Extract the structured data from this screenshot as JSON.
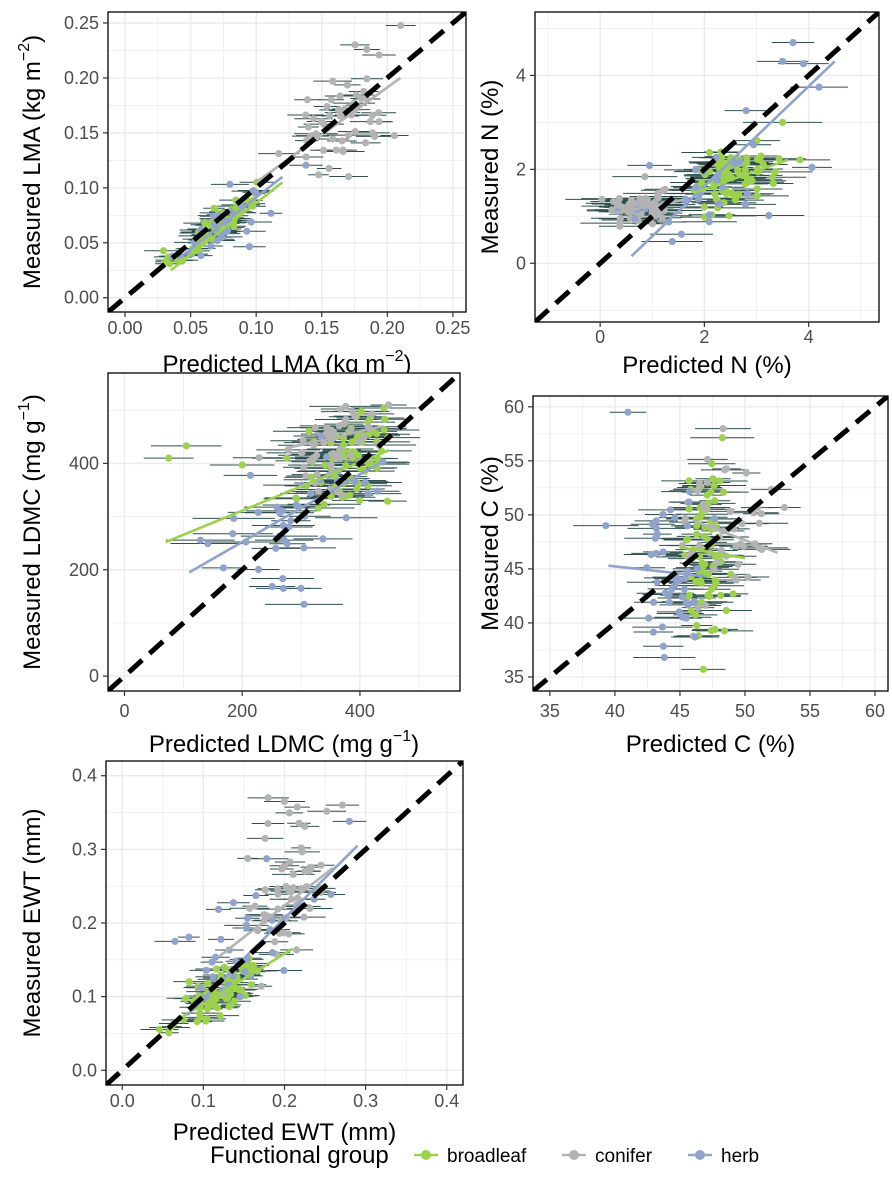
{
  "colors": {
    "broadleaf": "#9bd14c",
    "conifer": "#b3b3b3",
    "herb": "#8fa3cc",
    "errorbar": "#2f4f4f",
    "grid": "#ebebeb",
    "one_to_one": "#000000"
  },
  "legend": {
    "title": "Functional group",
    "entries": [
      {
        "key": "broadleaf",
        "label": "broadleaf"
      },
      {
        "key": "conifer",
        "label": "conifer"
      },
      {
        "key": "herb",
        "label": "herb"
      }
    ]
  },
  "chart_data": [
    {
      "id": "lma",
      "type": "scatter",
      "xlabel": {
        "main": "Predicted LMA (kg m",
        "sup": "−2",
        "tail": ")"
      },
      "ylabel": {
        "main": "Measured LMA (kg m",
        "sup": "−2",
        "tail": ")"
      },
      "xlim": [
        -0.013,
        0.26
      ],
      "ylim": [
        -0.013,
        0.26
      ],
      "ticks": [
        0.0,
        0.05,
        0.1,
        0.15,
        0.2,
        0.25
      ],
      "tick_labels": [
        "0.00",
        "0.05",
        "0.10",
        "0.15",
        "0.20",
        "0.25"
      ],
      "xerr": 0.012,
      "clusters": [
        {
          "group": "broadleaf",
          "n": 70,
          "cx": 0.068,
          "cy": 0.064,
          "sx": 0.016,
          "sy": 0.016,
          "r": 0.9
        },
        {
          "group": "conifer",
          "n": 55,
          "cx": 0.165,
          "cy": 0.165,
          "sx": 0.022,
          "sy": 0.034,
          "r": 0.55
        },
        {
          "group": "herb",
          "n": 28,
          "cx": 0.08,
          "cy": 0.07,
          "sx": 0.018,
          "sy": 0.018,
          "r": 0.7
        }
      ],
      "fit_lines": [
        {
          "group": "broadleaf",
          "x": [
            0.035,
            0.12
          ],
          "y": [
            0.025,
            0.105
          ]
        },
        {
          "group": "herb",
          "x": [
            0.04,
            0.12
          ],
          "y": [
            0.035,
            0.11
          ]
        },
        {
          "group": "conifer",
          "x": [
            0.1,
            0.21
          ],
          "y": [
            0.105,
            0.2
          ]
        }
      ]
    },
    {
      "id": "n",
      "type": "scatter",
      "xlabel": {
        "main": "Predicted N (%)"
      },
      "ylabel": {
        "main": "Measured N (%)"
      },
      "xlim": [
        -1.25,
        5.35
      ],
      "ylim": [
        -1.25,
        5.35
      ],
      "ticks": [
        0,
        2,
        4
      ],
      "tick_labels": [
        "0",
        "2",
        "4"
      ],
      "xerr": 0.55,
      "clusters": [
        {
          "group": "conifer",
          "n": 60,
          "cx": 0.75,
          "cy": 1.2,
          "sx": 0.3,
          "sy": 0.22,
          "r": 0.2
        },
        {
          "group": "broadleaf",
          "n": 80,
          "cx": 2.6,
          "cy": 1.85,
          "sx": 0.45,
          "sy": 0.35,
          "r": 0.5
        },
        {
          "group": "herb",
          "n": 30,
          "cx": 2.0,
          "cy": 1.5,
          "sx": 0.8,
          "sy": 0.5,
          "r": 0.6
        }
      ],
      "extra_points": [
        {
          "group": "herb",
          "x": 3.7,
          "y": 4.7
        },
        {
          "group": "herb",
          "x": 3.5,
          "y": 4.3
        },
        {
          "group": "herb",
          "x": 3.9,
          "y": 4.25
        },
        {
          "group": "herb",
          "x": 4.2,
          "y": 3.75
        },
        {
          "group": "herb",
          "x": 2.8,
          "y": 3.25
        },
        {
          "group": "broadleaf",
          "x": 3.5,
          "y": 3.0
        }
      ],
      "fit_lines": [
        {
          "group": "herb",
          "x": [
            0.6,
            4.5
          ],
          "y": [
            0.15,
            4.3
          ]
        },
        {
          "group": "conifer",
          "x": [
            0.2,
            1.6
          ],
          "y": [
            1.05,
            1.35
          ]
        },
        {
          "group": "broadleaf",
          "x": [
            1.8,
            3.6
          ],
          "y": [
            1.5,
            2.2
          ]
        }
      ]
    },
    {
      "id": "ldmc",
      "type": "scatter",
      "xlabel": {
        "main": "Predicted LDMC (mg g",
        "sup": "−1",
        "tail": ")"
      },
      "ylabel": {
        "main": "Measured LDMC (mg g",
        "sup": "−1",
        "tail": ")"
      },
      "xlim": [
        -28,
        570
      ],
      "ylim": [
        -28,
        570
      ],
      "ticks": [
        0,
        200,
        400
      ],
      "tick_labels": [
        "0",
        "200",
        "400"
      ],
      "xerr": 50,
      "clusters": [
        {
          "group": "broadleaf",
          "n": 75,
          "cx": 370,
          "cy": 400,
          "sx": 45,
          "sy": 50,
          "r": 0.4
        },
        {
          "group": "conifer",
          "n": 50,
          "cx": 360,
          "cy": 440,
          "sx": 35,
          "sy": 40,
          "r": 0.3
        },
        {
          "group": "herb",
          "n": 40,
          "cx": 300,
          "cy": 310,
          "sx": 80,
          "sy": 70,
          "r": 0.6
        }
      ],
      "extra_points": [
        {
          "group": "broadleaf",
          "x": 75,
          "y": 410
        },
        {
          "group": "broadleaf",
          "x": 105,
          "y": 433
        },
        {
          "group": "broadleaf",
          "x": 200,
          "y": 397
        },
        {
          "group": "herb",
          "x": 305,
          "y": 135
        },
        {
          "group": "herb",
          "x": 300,
          "y": 165
        },
        {
          "group": "herb",
          "x": 270,
          "y": 165
        }
      ],
      "fit_lines": [
        {
          "group": "broadleaf",
          "x": [
            70,
            450
          ],
          "y": [
            252,
            425
          ]
        },
        {
          "group": "herb",
          "x": [
            110,
            440
          ],
          "y": [
            195,
            405
          ]
        },
        {
          "group": "conifer",
          "x": [
            280,
            440
          ],
          "y": [
            430,
            470
          ]
        }
      ]
    },
    {
      "id": "c",
      "type": "scatter",
      "xlabel": {
        "main": "Predicted C (%)"
      },
      "ylabel": {
        "main": "Measured C (%)"
      },
      "xlim": [
        33.7,
        61.0
      ],
      "ylim": [
        33.7,
        61.0
      ],
      "ticks": [
        35,
        40,
        45,
        50,
        55,
        60
      ],
      "tick_labels": [
        "35",
        "40",
        "45",
        "50",
        "55",
        "60"
      ],
      "xerr": 1.8,
      "clusters": [
        {
          "group": "broadleaf",
          "n": 80,
          "cx": 47.0,
          "cy": 46.5,
          "sx": 0.9,
          "sy": 4.0,
          "r": 0.1
        },
        {
          "group": "conifer",
          "n": 50,
          "cx": 48.5,
          "cy": 49.0,
          "sx": 1.6,
          "sy": 4.0,
          "r": 0.05
        },
        {
          "group": "herb",
          "n": 45,
          "cx": 44.5,
          "cy": 44.5,
          "sx": 1.4,
          "sy": 3.5,
          "r": 0.2
        }
      ],
      "extra_points": [
        {
          "group": "herb",
          "x": 41.0,
          "y": 59.5
        },
        {
          "group": "herb",
          "x": 39.3,
          "y": 49.0
        },
        {
          "group": "herb",
          "x": 43.8,
          "y": 36.8
        },
        {
          "group": "broadleaf",
          "x": 46.8,
          "y": 35.7
        }
      ],
      "fit_lines": [
        {
          "group": "broadleaf",
          "x": [
            45.0,
            50.0
          ],
          "y": [
            47.0,
            46.0
          ]
        },
        {
          "group": "herb",
          "x": [
            39.5,
            47.0
          ],
          "y": [
            45.3,
            44.3
          ]
        },
        {
          "group": "conifer",
          "x": [
            46.0,
            52.5
          ],
          "y": [
            49.5,
            46.5
          ]
        }
      ]
    },
    {
      "id": "ewt",
      "type": "scatter",
      "xlabel": {
        "main": "Predicted EWT (mm)"
      },
      "ylabel": {
        "main": "Measured EWT (mm)"
      },
      "xlim": [
        -0.02,
        0.42
      ],
      "ylim": [
        -0.02,
        0.42
      ],
      "ticks": [
        0.0,
        0.1,
        0.2,
        0.3,
        0.4
      ],
      "tick_labels": [
        "0.0",
        "0.1",
        "0.2",
        "0.3",
        "0.4"
      ],
      "xerr": 0.02,
      "clusters": [
        {
          "group": "broadleaf",
          "n": 90,
          "cx": 0.115,
          "cy": 0.1,
          "sx": 0.025,
          "sy": 0.022,
          "r": 0.7
        },
        {
          "group": "conifer",
          "n": 55,
          "cx": 0.2,
          "cy": 0.24,
          "sx": 0.03,
          "sy": 0.055,
          "r": 0.4
        },
        {
          "group": "herb",
          "n": 30,
          "cx": 0.15,
          "cy": 0.16,
          "sx": 0.04,
          "sy": 0.05,
          "r": 0.5
        }
      ],
      "extra_points": [
        {
          "group": "herb",
          "x": 0.28,
          "y": 0.338
        },
        {
          "group": "conifer",
          "x": 0.18,
          "y": 0.37
        },
        {
          "group": "conifer",
          "x": 0.2,
          "y": 0.365
        },
        {
          "group": "herb",
          "x": 0.065,
          "y": 0.175
        }
      ],
      "fit_lines": [
        {
          "group": "broadleaf",
          "x": [
            0.07,
            0.21
          ],
          "y": [
            0.07,
            0.165
          ]
        },
        {
          "group": "herb",
          "x": [
            0.08,
            0.29
          ],
          "y": [
            0.075,
            0.305
          ]
        },
        {
          "group": "conifer",
          "x": [
            0.12,
            0.26
          ],
          "y": [
            0.155,
            0.275
          ]
        }
      ]
    }
  ]
}
